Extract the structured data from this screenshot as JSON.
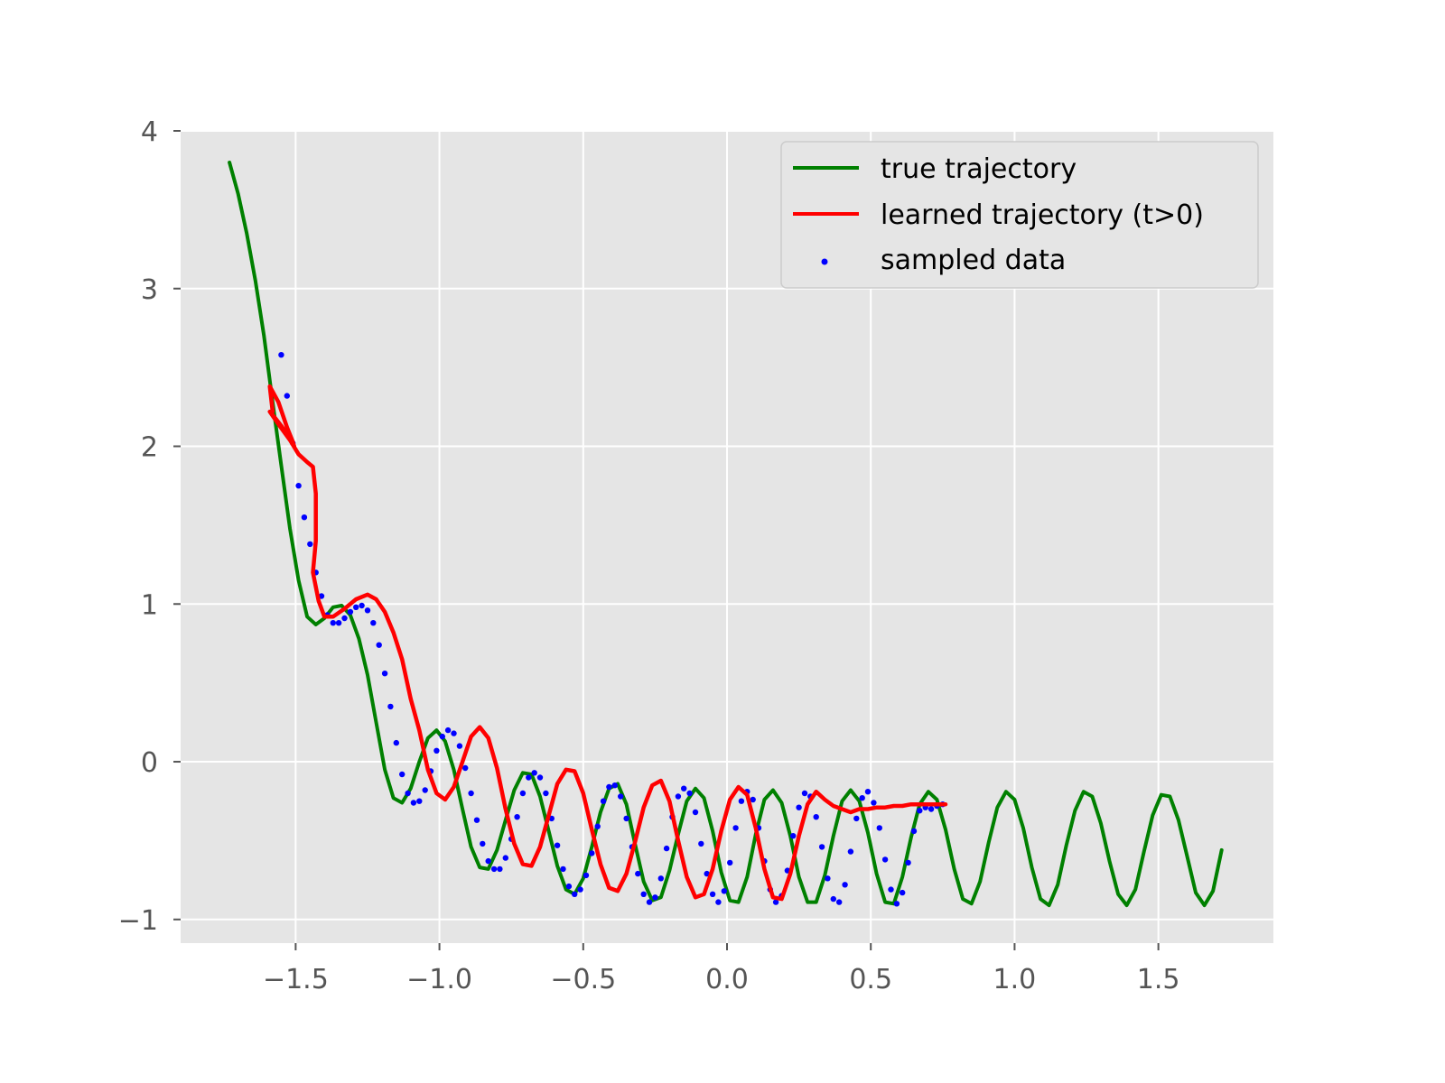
{
  "chart_data": {
    "type": "line",
    "title": "",
    "xlabel": "",
    "ylabel": "",
    "xlim": [
      -1.9,
      1.9
    ],
    "ylim": [
      -1.15,
      4.0
    ],
    "grid": true,
    "x_ticks": [
      -1.5,
      -1.0,
      -0.5,
      0.0,
      0.5,
      1.0,
      1.5
    ],
    "x_tick_labels": [
      "−1.5",
      "−1.0",
      "−0.5",
      "0.0",
      "0.5",
      "1.0",
      "1.5"
    ],
    "y_ticks": [
      -1,
      0,
      1,
      2,
      3,
      4
    ],
    "y_tick_labels": [
      "−1",
      "0",
      "1",
      "2",
      "3",
      "4"
    ],
    "legend": {
      "placement": "top-right",
      "entries": [
        {
          "label": "true trajectory",
          "color": "#008000",
          "kind": "line"
        },
        {
          "label": "learned trajectory (t>0)",
          "color": "#ff0000",
          "kind": "line"
        },
        {
          "label": "sampled data",
          "color": "#0000ff",
          "kind": "marker"
        }
      ]
    },
    "series": [
      {
        "name": "true trajectory",
        "color": "#008000",
        "kind": "line",
        "x": [
          -1.73,
          -1.7,
          -1.67,
          -1.64,
          -1.61,
          -1.58,
          -1.55,
          -1.52,
          -1.49,
          -1.46,
          -1.43,
          -1.4,
          -1.37,
          -1.34,
          -1.31,
          -1.28,
          -1.25,
          -1.22,
          -1.19,
          -1.16,
          -1.13,
          -1.1,
          -1.07,
          -1.04,
          -1.01,
          -0.98,
          -0.95,
          -0.92,
          -0.89,
          -0.86,
          -0.83,
          -0.8,
          -0.77,
          -0.74,
          -0.71,
          -0.68,
          -0.65,
          -0.62,
          -0.59,
          -0.56,
          -0.53,
          -0.5,
          -0.47,
          -0.44,
          -0.41,
          -0.38,
          -0.35,
          -0.32,
          -0.29,
          -0.26,
          -0.23,
          -0.2,
          -0.17,
          -0.14,
          -0.11,
          -0.08,
          -0.05,
          -0.02,
          0.01,
          0.04,
          0.07,
          0.1,
          0.13,
          0.16,
          0.19,
          0.22,
          0.25,
          0.28,
          0.31,
          0.34,
          0.37,
          0.4,
          0.43,
          0.46,
          0.49,
          0.52,
          0.55,
          0.58,
          0.61,
          0.64,
          0.67,
          0.7,
          0.73,
          0.76,
          0.79,
          0.82,
          0.85,
          0.88,
          0.91,
          0.94,
          0.97,
          1.0,
          1.03,
          1.06,
          1.09,
          1.12,
          1.15,
          1.18,
          1.21,
          1.24,
          1.27,
          1.3,
          1.33,
          1.36,
          1.39,
          1.42,
          1.45,
          1.48,
          1.51,
          1.54,
          1.57,
          1.6,
          1.63,
          1.66,
          1.69,
          1.72
        ],
        "y": [
          3.8,
          3.6,
          3.35,
          3.05,
          2.7,
          2.28,
          1.88,
          1.48,
          1.15,
          0.92,
          0.87,
          0.91,
          0.98,
          0.99,
          0.93,
          0.78,
          0.55,
          0.25,
          -0.05,
          -0.23,
          -0.26,
          -0.17,
          0.0,
          0.15,
          0.2,
          0.13,
          -0.05,
          -0.3,
          -0.54,
          -0.67,
          -0.68,
          -0.56,
          -0.37,
          -0.18,
          -0.07,
          -0.08,
          -0.22,
          -0.44,
          -0.66,
          -0.81,
          -0.84,
          -0.74,
          -0.54,
          -0.32,
          -0.17,
          -0.14,
          -0.27,
          -0.52,
          -0.76,
          -0.88,
          -0.86,
          -0.69,
          -0.46,
          -0.25,
          -0.17,
          -0.23,
          -0.44,
          -0.7,
          -0.88,
          -0.89,
          -0.73,
          -0.46,
          -0.24,
          -0.18,
          -0.26,
          -0.47,
          -0.73,
          -0.89,
          -0.89,
          -0.72,
          -0.47,
          -0.25,
          -0.18,
          -0.25,
          -0.45,
          -0.71,
          -0.89,
          -0.9,
          -0.73,
          -0.48,
          -0.27,
          -0.19,
          -0.24,
          -0.43,
          -0.68,
          -0.87,
          -0.9,
          -0.76,
          -0.51,
          -0.29,
          -0.19,
          -0.24,
          -0.42,
          -0.67,
          -0.87,
          -0.91,
          -0.78,
          -0.53,
          -0.31,
          -0.19,
          -0.22,
          -0.39,
          -0.63,
          -0.84,
          -0.91,
          -0.81,
          -0.57,
          -0.34,
          -0.21,
          -0.22,
          -0.37,
          -0.6,
          -0.83,
          -0.91,
          -0.82,
          -0.56
        ]
      },
      {
        "name": "learned trajectory (t>0)",
        "color": "#ff0000",
        "kind": "line",
        "x": [
          -1.58,
          -1.59,
          -1.56,
          -1.53,
          -1.51,
          -1.505,
          -1.52,
          -1.55,
          -1.58,
          -1.59,
          -1.56,
          -1.52,
          -1.49,
          -1.46,
          -1.44,
          -1.43,
          -1.43,
          -1.44,
          -1.42,
          -1.4,
          -1.37,
          -1.33,
          -1.29,
          -1.25,
          -1.22,
          -1.19,
          -1.16,
          -1.13,
          -1.1,
          -1.07,
          -1.04,
          -1.01,
          -0.98,
          -0.95,
          -0.92,
          -0.89,
          -0.86,
          -0.83,
          -0.8,
          -0.77,
          -0.74,
          -0.71,
          -0.68,
          -0.65,
          -0.62,
          -0.59,
          -0.56,
          -0.53,
          -0.5,
          -0.47,
          -0.44,
          -0.41,
          -0.38,
          -0.35,
          -0.32,
          -0.29,
          -0.26,
          -0.23,
          -0.2,
          -0.17,
          -0.14,
          -0.11,
          -0.08,
          -0.05,
          -0.02,
          0.01,
          0.04,
          0.07,
          0.1,
          0.13,
          0.16,
          0.19,
          0.22,
          0.25,
          0.28,
          0.31,
          0.34,
          0.37,
          0.4,
          0.43,
          0.46,
          0.49,
          0.52,
          0.55,
          0.58,
          0.61,
          0.64,
          0.67,
          0.7,
          0.73,
          0.76
        ],
        "y": [
          2.22,
          2.38,
          2.28,
          2.12,
          2.03,
          2.0,
          2.05,
          2.13,
          2.2,
          2.22,
          2.14,
          2.04,
          1.95,
          1.9,
          1.87,
          1.7,
          1.4,
          1.2,
          1.02,
          0.92,
          0.92,
          0.97,
          1.03,
          1.06,
          1.03,
          0.95,
          0.82,
          0.65,
          0.4,
          0.2,
          -0.05,
          -0.2,
          -0.24,
          -0.16,
          0.0,
          0.16,
          0.22,
          0.15,
          -0.04,
          -0.3,
          -0.52,
          -0.65,
          -0.66,
          -0.54,
          -0.34,
          -0.14,
          -0.05,
          -0.06,
          -0.2,
          -0.43,
          -0.65,
          -0.8,
          -0.82,
          -0.71,
          -0.51,
          -0.29,
          -0.15,
          -0.12,
          -0.25,
          -0.5,
          -0.73,
          -0.86,
          -0.84,
          -0.68,
          -0.44,
          -0.24,
          -0.16,
          -0.21,
          -0.42,
          -0.68,
          -0.86,
          -0.87,
          -0.71,
          -0.47,
          -0.27,
          -0.19,
          -0.24,
          -0.28,
          -0.3,
          -0.32,
          -0.3,
          -0.3,
          -0.29,
          -0.29,
          -0.28,
          -0.28,
          -0.27,
          -0.27,
          -0.27,
          -0.27,
          -0.27
        ]
      },
      {
        "name": "sampled data",
        "color": "#0000ff",
        "kind": "scatter",
        "x": [
          -1.55,
          -1.53,
          -1.51,
          -1.49,
          -1.47,
          -1.45,
          -1.43,
          -1.41,
          -1.39,
          -1.37,
          -1.35,
          -1.33,
          -1.31,
          -1.29,
          -1.27,
          -1.25,
          -1.23,
          -1.21,
          -1.19,
          -1.17,
          -1.15,
          -1.13,
          -1.11,
          -1.09,
          -1.07,
          -1.05,
          -1.03,
          -1.01,
          -0.99,
          -0.97,
          -0.95,
          -0.93,
          -0.91,
          -0.89,
          -0.87,
          -0.85,
          -0.83,
          -0.81,
          -0.79,
          -0.77,
          -0.75,
          -0.73,
          -0.71,
          -0.69,
          -0.67,
          -0.65,
          -0.63,
          -0.61,
          -0.59,
          -0.57,
          -0.55,
          -0.53,
          -0.51,
          -0.49,
          -0.47,
          -0.45,
          -0.43,
          -0.41,
          -0.39,
          -0.37,
          -0.35,
          -0.33,
          -0.31,
          -0.29,
          -0.27,
          -0.25,
          -0.23,
          -0.21,
          -0.19,
          -0.17,
          -0.15,
          -0.13,
          -0.11,
          -0.09,
          -0.07,
          -0.05,
          -0.03,
          -0.01,
          0.01,
          0.03,
          0.05,
          0.07,
          0.09,
          0.11,
          0.13,
          0.15,
          0.17,
          0.19,
          0.21,
          0.23,
          0.25,
          0.27,
          0.29,
          0.31,
          0.33,
          0.35,
          0.37,
          0.39,
          0.41,
          0.43,
          0.45,
          0.47,
          0.49,
          0.51,
          0.53,
          0.55,
          0.57,
          0.59,
          0.61,
          0.63,
          0.65,
          0.67,
          0.69,
          0.71,
          0.73,
          0.75
        ],
        "y": [
          2.58,
          2.32,
          2.02,
          1.75,
          1.55,
          1.38,
          1.2,
          1.05,
          0.93,
          0.88,
          0.88,
          0.91,
          0.95,
          0.98,
          0.99,
          0.96,
          0.88,
          0.74,
          0.56,
          0.35,
          0.12,
          -0.08,
          -0.2,
          -0.26,
          -0.25,
          -0.18,
          -0.06,
          0.07,
          0.16,
          0.2,
          0.18,
          0.1,
          -0.04,
          -0.2,
          -0.37,
          -0.52,
          -0.63,
          -0.68,
          -0.68,
          -0.61,
          -0.49,
          -0.35,
          -0.2,
          -0.1,
          -0.07,
          -0.1,
          -0.2,
          -0.36,
          -0.53,
          -0.68,
          -0.79,
          -0.84,
          -0.81,
          -0.72,
          -0.58,
          -0.41,
          -0.25,
          -0.16,
          -0.15,
          -0.22,
          -0.36,
          -0.54,
          -0.71,
          -0.84,
          -0.89,
          -0.86,
          -0.74,
          -0.55,
          -0.35,
          -0.22,
          -0.17,
          -0.2,
          -0.32,
          -0.52,
          -0.71,
          -0.84,
          -0.89,
          -0.82,
          -0.64,
          -0.42,
          -0.25,
          -0.19,
          -0.24,
          -0.42,
          -0.63,
          -0.81,
          -0.89,
          -0.85,
          -0.69,
          -0.47,
          -0.29,
          -0.2,
          -0.22,
          -0.35,
          -0.54,
          -0.74,
          -0.87,
          -0.89,
          -0.78,
          -0.57,
          -0.36,
          -0.23,
          -0.19,
          -0.26,
          -0.42,
          -0.62,
          -0.81,
          -0.9,
          -0.83,
          -0.64,
          -0.44,
          -0.31,
          -0.29,
          -0.3,
          -0.28,
          -0.27
        ]
      }
    ]
  }
}
